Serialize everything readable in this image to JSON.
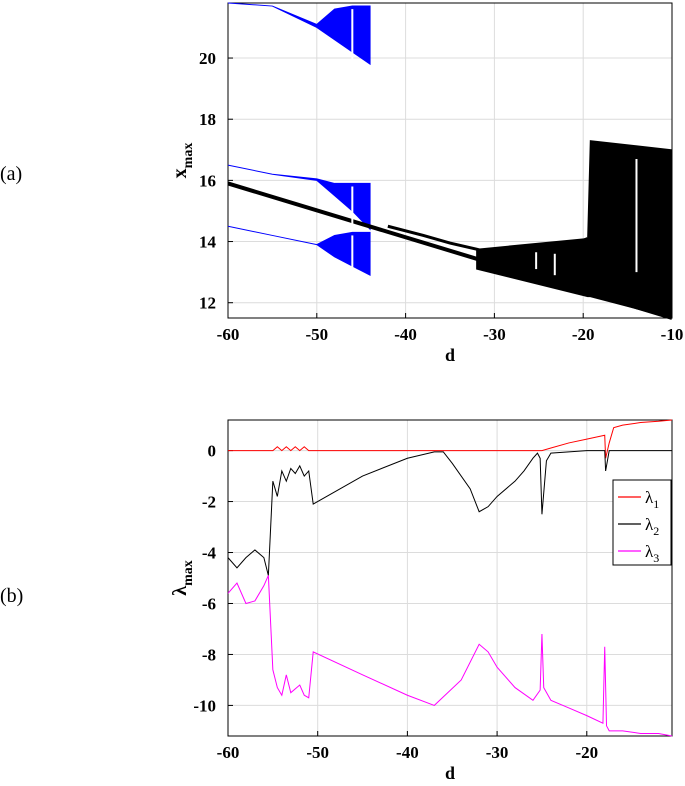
{
  "panel_labels": [
    "(a)",
    "(b)"
  ],
  "chart_data": [
    {
      "type": "scatter",
      "panel": "(a)",
      "xlabel": "d",
      "ylabel": "x",
      "ylabel_sub": "max",
      "xlim": [
        -60,
        -10
      ],
      "ylim": [
        11.5,
        21.8
      ],
      "xticks": [
        -60,
        -50,
        -40,
        -30,
        -20,
        -10
      ],
      "yticks": [
        12,
        14,
        16,
        18,
        20
      ],
      "grid": true,
      "colors": {
        "black_branch": "#000000",
        "blue_branches": "#0000ff"
      },
      "series": [
        {
          "color": "#000000",
          "role": "lower-line",
          "x": [
            -60,
            -10
          ],
          "y": [
            15.9,
            11.5
          ]
        },
        {
          "color": "#000000",
          "role": "upper-line",
          "x": [
            -42,
            -38,
            -35,
            -32,
            -30,
            -28,
            -25,
            -22,
            -19.5
          ],
          "y": [
            14.5,
            14.2,
            13.95,
            13.75,
            13.6,
            13.55,
            13.6,
            13.8,
            14.1
          ]
        },
        {
          "color": "#000000",
          "role": "chaotic-band",
          "x": [
            -32,
            -19.5,
            -19.2,
            -10
          ],
          "ymin_line": [
            13.1,
            12.2,
            12.2,
            11.5
          ],
          "ymax": [
            13.75,
            14.1,
            17.3,
            17.0
          ]
        },
        {
          "color": "#0000ff",
          "role": "branch-1",
          "x": [
            -60,
            -55,
            -50,
            -48,
            -46,
            -44
          ],
          "ymin": [
            21.8,
            21.7,
            21.0,
            20.6,
            20.2,
            19.8
          ],
          "ymax": [
            21.8,
            21.7,
            21.1,
            21.6,
            21.7,
            21.7
          ]
        },
        {
          "color": "#0000ff",
          "role": "branch-2",
          "x": [
            -60,
            -55,
            -50,
            -48,
            -46,
            -44
          ],
          "ymin": [
            16.5,
            16.2,
            16.0,
            15.5,
            15.0,
            14.4
          ],
          "ymax": [
            16.5,
            16.2,
            16.05,
            15.9,
            15.9,
            15.9
          ]
        },
        {
          "color": "#0000ff",
          "role": "branch-3",
          "x": [
            -60,
            -55,
            -50,
            -48,
            -46,
            -44
          ],
          "ymin": [
            14.5,
            14.2,
            13.9,
            13.5,
            13.2,
            12.9
          ],
          "ymax": [
            14.5,
            14.2,
            13.9,
            14.2,
            14.3,
            14.3
          ]
        }
      ]
    },
    {
      "type": "line",
      "panel": "(b)",
      "xlabel": "d",
      "ylabel": "λ",
      "ylabel_sub": "max",
      "xlim": [
        -60,
        -10.5
      ],
      "ylim": [
        -11.2,
        1.2
      ],
      "xticks": [
        -60,
        -50,
        -40,
        -30,
        -20
      ],
      "yticks": [
        0,
        -2,
        -4,
        -6,
        -8,
        -10
      ],
      "grid": true,
      "legend_position": "right",
      "series": [
        {
          "name": "λ",
          "sub": "1",
          "color": "#ff0000",
          "x": [
            -60,
            -55,
            -54.5,
            -54,
            -53.5,
            -53,
            -52.5,
            -52,
            -51.5,
            -51,
            -50.5,
            -25,
            -24,
            -22,
            -20,
            -18,
            -17.9,
            -17.5,
            -17,
            -16,
            -14,
            -12,
            -10.5
          ],
          "y": [
            0,
            0,
            0.15,
            0,
            0.15,
            0,
            0.15,
            0,
            0.15,
            0,
            0,
            0,
            0.1,
            0.3,
            0.45,
            0.6,
            -0.3,
            0.3,
            0.9,
            1.0,
            1.1,
            1.15,
            1.2
          ]
        },
        {
          "name": "λ",
          "sub": "2",
          "color": "#000000",
          "x": [
            -60,
            -59,
            -58,
            -57,
            -56,
            -55.5,
            -55,
            -54.5,
            -54,
            -53.5,
            -53,
            -52.5,
            -52,
            -51.5,
            -51,
            -50.5,
            -45,
            -40,
            -37,
            -36,
            -35,
            -33,
            -32,
            -31,
            -30,
            -28,
            -27,
            -26,
            -25.5,
            -25.2,
            -25,
            -24.5,
            -24,
            -22,
            -20,
            -18,
            -17.9,
            -17.5,
            -10.5
          ],
          "y": [
            -4.2,
            -4.6,
            -4.2,
            -3.9,
            -4.2,
            -4.9,
            -1.2,
            -1.8,
            -0.8,
            -1.2,
            -0.7,
            -0.9,
            -0.6,
            -1.0,
            -0.8,
            -2.1,
            -1.0,
            -0.3,
            -0.05,
            -0.05,
            -0.5,
            -1.5,
            -2.4,
            -2.2,
            -1.8,
            -1.2,
            -0.8,
            -0.3,
            -0.1,
            -0.3,
            -2.5,
            -0.4,
            -0.1,
            -0.05,
            0,
            0,
            -0.8,
            0,
            0
          ]
        },
        {
          "name": "λ",
          "sub": "3",
          "color": "#ff00ff",
          "x": [
            -60,
            -59,
            -58,
            -57,
            -56,
            -55.5,
            -55,
            -54.5,
            -54,
            -53.5,
            -53,
            -52,
            -51.5,
            -51,
            -50.5,
            -45,
            -40,
            -37,
            -34,
            -32,
            -31,
            -30,
            -28,
            -26,
            -25.2,
            -25,
            -24.8,
            -24,
            -22,
            -20,
            -18.2,
            -18,
            -17.8,
            -17.5,
            -16,
            -14,
            -12,
            -10.5
          ],
          "y": [
            -5.6,
            -5.2,
            -6.0,
            -5.9,
            -5.3,
            -4.9,
            -8.6,
            -9.3,
            -9.6,
            -8.8,
            -9.5,
            -9.2,
            -9.6,
            -9.7,
            -7.9,
            -8.8,
            -9.6,
            -10.0,
            -9.0,
            -7.6,
            -7.9,
            -8.5,
            -9.3,
            -9.8,
            -9.4,
            -7.2,
            -9.3,
            -9.8,
            -10.1,
            -10.4,
            -10.7,
            -7.7,
            -10.8,
            -11.0,
            -11.0,
            -11.1,
            -11.1,
            -11.2
          ]
        }
      ]
    }
  ]
}
